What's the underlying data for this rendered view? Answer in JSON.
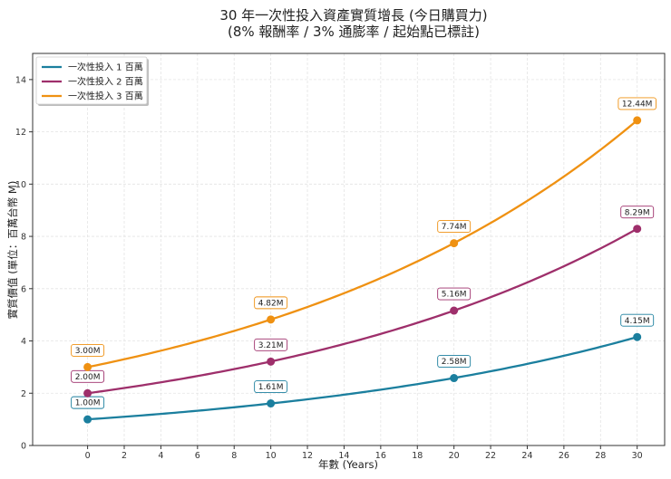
{
  "chart_data": {
    "type": "line",
    "title": "30 年一次性投入資產實質增長 (今日購買力)",
    "subtitle": "(8% 報酬率 / 3% 通膨率 / 起始點已標註)",
    "xlabel": "年數 (Years)",
    "ylabel": "實質價值 (單位：百萬台幣 M)",
    "xlim": [
      -3,
      31.5
    ],
    "ylim": [
      0,
      15
    ],
    "xticks": [
      0,
      2,
      4,
      6,
      8,
      10,
      12,
      14,
      16,
      18,
      20,
      22,
      24,
      26,
      28,
      30
    ],
    "yticks": [
      0,
      2,
      4,
      6,
      8,
      10,
      12,
      14
    ],
    "grid": true,
    "legend_position": "top-left",
    "annotated_years": [
      0,
      10,
      20,
      30
    ],
    "series": [
      {
        "name": "一次性投入 1 百萬",
        "color": "#1b7f9e",
        "start": 1,
        "annotated_values": [
          1.0,
          1.61,
          2.58,
          4.15
        ],
        "labels": [
          "1.00M",
          "1.61M",
          "2.58M",
          "4.15M"
        ]
      },
      {
        "name": "一次性投入 2 百萬",
        "color": "#9e2f6b",
        "start": 2,
        "annotated_values": [
          2.0,
          3.21,
          5.16,
          8.29
        ],
        "labels": [
          "2.00M",
          "3.21M",
          "5.16M",
          "8.29M"
        ]
      },
      {
        "name": "一次性投入 3 百萬",
        "color": "#ef9112",
        "start": 3,
        "annotated_values": [
          3.0,
          4.82,
          7.74,
          12.44
        ],
        "labels": [
          "3.00M",
          "4.82M",
          "7.74M",
          "12.44M"
        ]
      }
    ]
  }
}
